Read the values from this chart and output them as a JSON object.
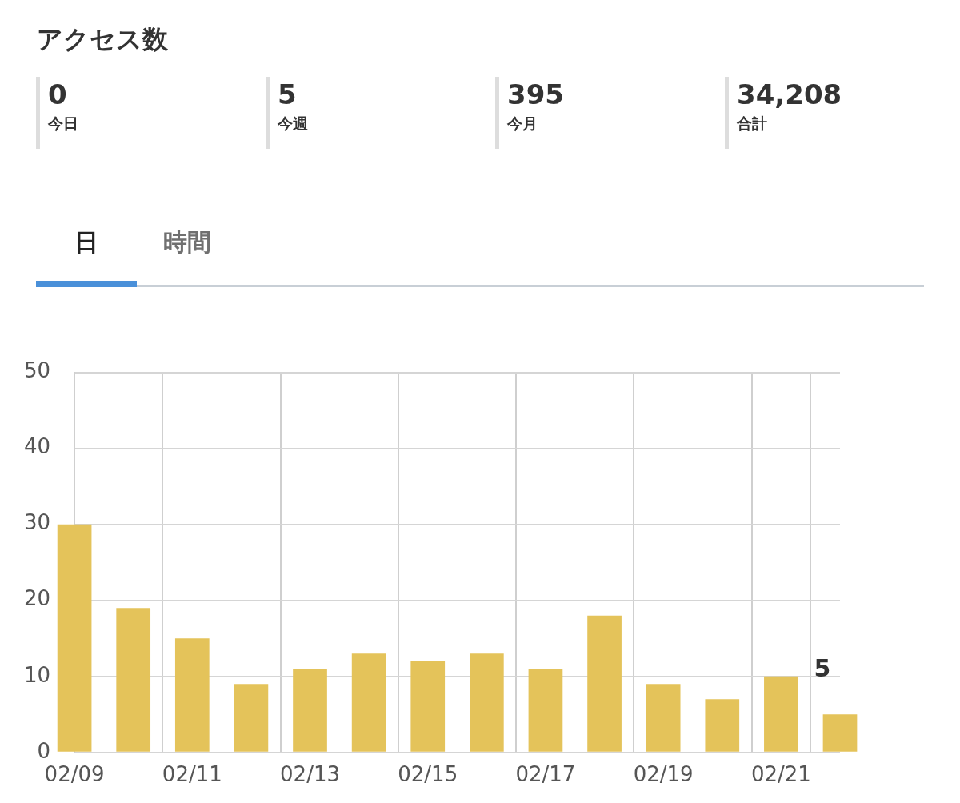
{
  "chart_data": {
    "type": "bar",
    "title": "アクセス数",
    "annotations": [
      "0",
      "今日",
      "5",
      "今週",
      "395",
      "今月",
      "34,208",
      "合計",
      "日",
      "時間"
    ],
    "categories": [
      "02/09",
      null,
      "02/11",
      null,
      "02/13",
      null,
      "02/15",
      null,
      "02/17",
      null,
      "02/19",
      null,
      "02/21",
      null
    ],
    "values": [
      30,
      19,
      15,
      9,
      11,
      13,
      12,
      13,
      11,
      18,
      9,
      7,
      10,
      5
    ],
    "value_labels": [
      null,
      null,
      null,
      null,
      null,
      null,
      null,
      null,
      null,
      null,
      null,
      null,
      null,
      "5"
    ],
    "color": "#e4c35a",
    "ylim": [
      0,
      50
    ],
    "yticks": [
      0,
      10,
      20,
      30,
      40,
      50
    ],
    "grid": true,
    "legend": false
  }
}
